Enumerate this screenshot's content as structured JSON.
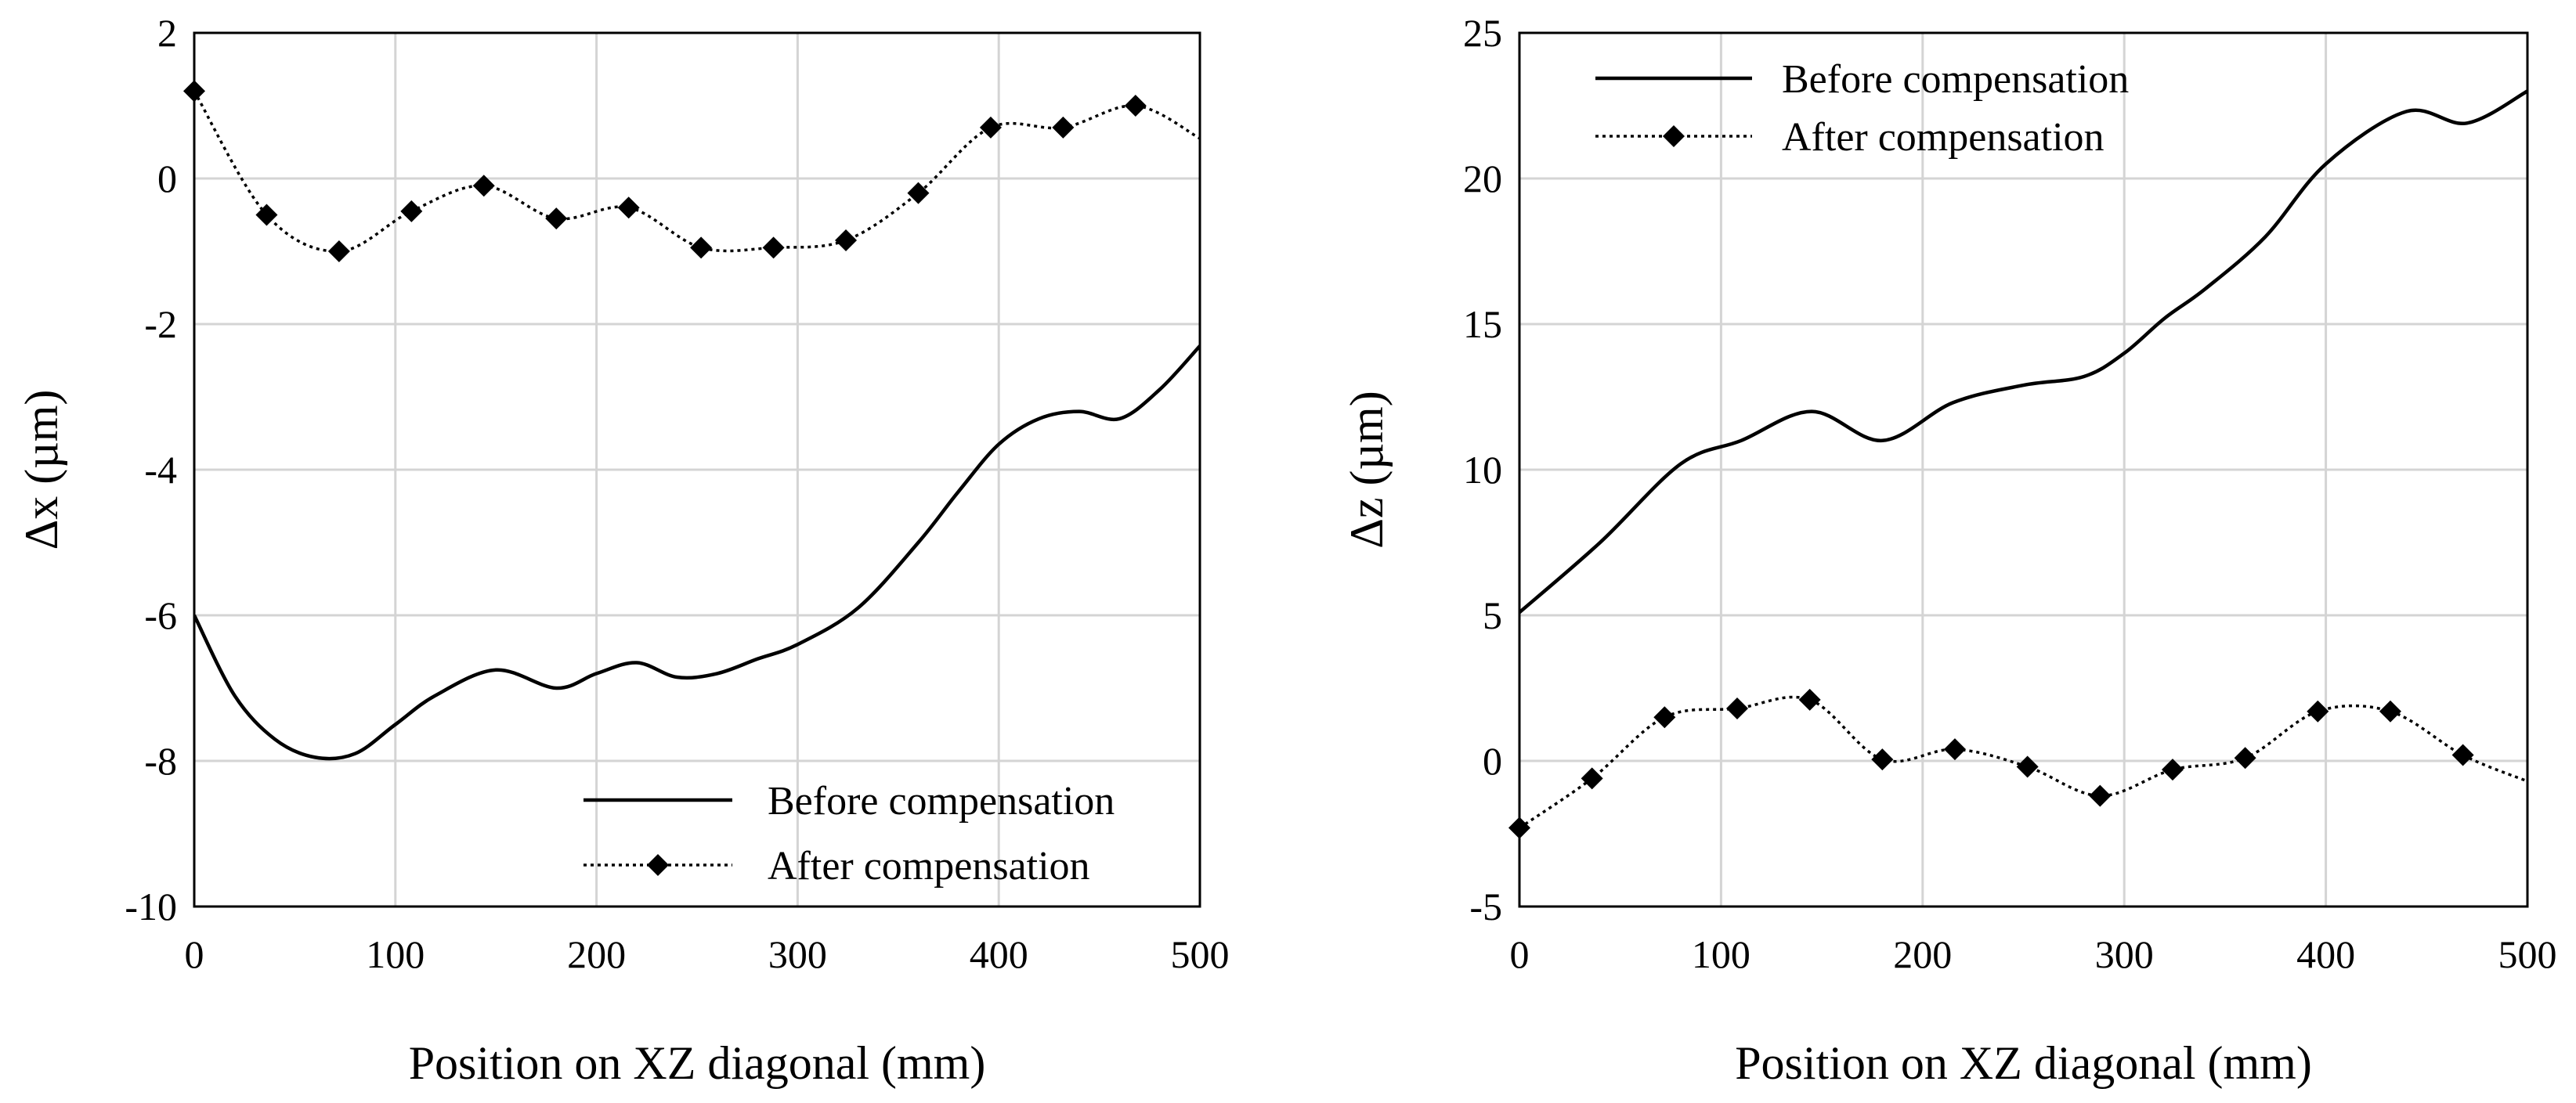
{
  "chart_data": [
    {
      "type": "line",
      "xlabel": "Position on XZ diagonal (mm)",
      "ylabel": "Δx (µm)",
      "xlim": [
        0,
        500
      ],
      "ylim": [
        -10,
        2
      ],
      "xticks": [
        0,
        100,
        200,
        300,
        400,
        500
      ],
      "yticks": [
        -10,
        -8,
        -6,
        -4,
        -2,
        0,
        2
      ],
      "xtick_labels": [
        "0",
        "100",
        "200",
        "300",
        "400",
        "500"
      ],
      "ytick_labels": [
        "-10",
        "-8",
        "-6",
        "-4",
        "-2",
        "0",
        "2"
      ],
      "grid": true,
      "legend_position": "bottom-right",
      "series": [
        {
          "name": "Before compensation",
          "style": "solid",
          "x": [
            0,
            20,
            40,
            60,
            80,
            100,
            120,
            150,
            180,
            200,
            220,
            240,
            260,
            280,
            300,
            330,
            360,
            380,
            400,
            420,
            440,
            460,
            480,
            500
          ],
          "y": [
            -6.0,
            -7.1,
            -7.7,
            -7.95,
            -7.9,
            -7.5,
            -7.1,
            -6.75,
            -7.0,
            -6.8,
            -6.65,
            -6.85,
            -6.8,
            -6.6,
            -6.4,
            -5.9,
            -5.0,
            -4.3,
            -3.65,
            -3.3,
            -3.2,
            -3.3,
            -2.9,
            -2.3
          ]
        },
        {
          "name": "After compensation",
          "style": "dotted-diamond",
          "x": [
            0,
            36,
            72,
            108,
            144,
            180,
            216,
            252,
            288,
            324,
            360,
            396,
            432,
            468,
            500
          ],
          "y": [
            1.2,
            -0.5,
            -1.0,
            -0.45,
            -0.1,
            -0.55,
            -0.4,
            -0.95,
            -0.95,
            -0.85,
            -0.2,
            0.7,
            0.7,
            1.0,
            0.55
          ],
          "marker_count": 14
        }
      ]
    },
    {
      "type": "line",
      "xlabel": "Position on XZ diagonal (mm)",
      "ylabel": "Δz (µm)",
      "xlim": [
        0,
        500
      ],
      "ylim": [
        -5,
        25
      ],
      "xticks": [
        0,
        100,
        200,
        300,
        400,
        500
      ],
      "yticks": [
        -5,
        0,
        5,
        10,
        15,
        20,
        25
      ],
      "xtick_labels": [
        "0",
        "100",
        "200",
        "300",
        "400",
        "500"
      ],
      "ytick_labels": [
        "-5",
        "0",
        "5",
        "10",
        "15",
        "20",
        "25"
      ],
      "grid": true,
      "legend_position": "top-left",
      "series": [
        {
          "name": "Before compensation",
          "style": "solid",
          "x": [
            0,
            40,
            80,
            110,
            145,
            180,
            215,
            250,
            280,
            300,
            320,
            340,
            370,
            400,
            440,
            470,
            500
          ],
          "y": [
            5.1,
            7.5,
            10.2,
            11.0,
            12.0,
            11.0,
            12.3,
            12.9,
            13.2,
            14.0,
            15.2,
            16.2,
            18.0,
            20.5,
            22.3,
            21.9,
            23.0
          ],
          "marker_count": 0
        },
        {
          "name": "After compensation",
          "style": "dotted-diamond",
          "x": [
            0,
            36,
            72,
            108,
            144,
            180,
            216,
            252,
            288,
            324,
            360,
            396,
            432,
            468,
            500
          ],
          "y": [
            -2.3,
            -0.6,
            1.5,
            1.8,
            2.1,
            0.05,
            0.4,
            -0.2,
            -1.2,
            -0.3,
            0.1,
            1.7,
            1.7,
            0.2,
            -0.7
          ],
          "marker_count": 14
        }
      ]
    }
  ]
}
